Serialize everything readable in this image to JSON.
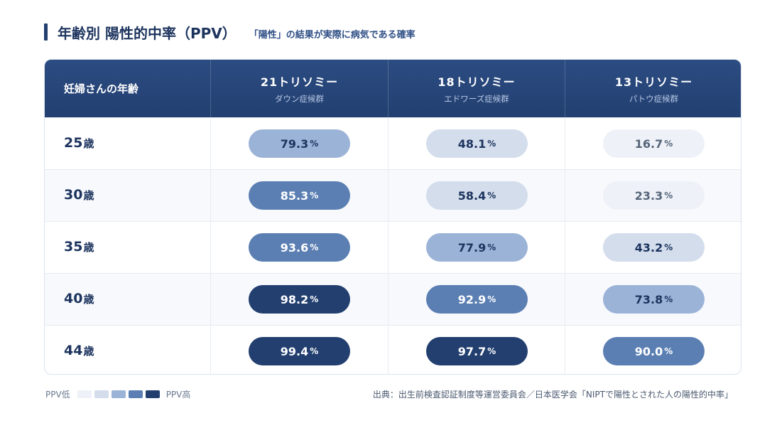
{
  "title": "年齢別 陽性的中率（PPV）",
  "subtitle": "「陽性」の結果が実際に病気である確率",
  "chart_data": {
    "type": "table",
    "row_header": "妊婦さんの年齢",
    "columns": [
      {
        "name": "21トリソミー",
        "sub": "ダウン症候群"
      },
      {
        "name": "18トリソミー",
        "sub": "エドワーズ症候群"
      },
      {
        "name": "13トリソミー",
        "sub": "パトウ症候群"
      }
    ],
    "rows": [
      {
        "age": "25",
        "unit": "歳",
        "values": [
          "79.3",
          "48.1",
          "16.7"
        ]
      },
      {
        "age": "30",
        "unit": "歳",
        "values": [
          "85.3",
          "58.4",
          "23.3"
        ]
      },
      {
        "age": "35",
        "unit": "歳",
        "values": [
          "93.6",
          "77.9",
          "43.2"
        ]
      },
      {
        "age": "40",
        "unit": "歳",
        "values": [
          "98.2",
          "92.9",
          "73.8"
        ]
      },
      {
        "age": "44",
        "unit": "歳",
        "values": [
          "99.4",
          "97.7",
          "90.0"
        ]
      }
    ],
    "value_unit": "%"
  },
  "colors": {
    "header": "#223f70",
    "scale": [
      "#eef2f8",
      "#d3ddec",
      "#9cb3d8",
      "#5b7fb3",
      "#223f70"
    ]
  },
  "legend": {
    "low": "PPV低",
    "high": "PPV高"
  },
  "source": "出典：出生前検査認証制度等運営委員会／日本医学会「NIPTで陽性とされた人の陽性的中率」"
}
